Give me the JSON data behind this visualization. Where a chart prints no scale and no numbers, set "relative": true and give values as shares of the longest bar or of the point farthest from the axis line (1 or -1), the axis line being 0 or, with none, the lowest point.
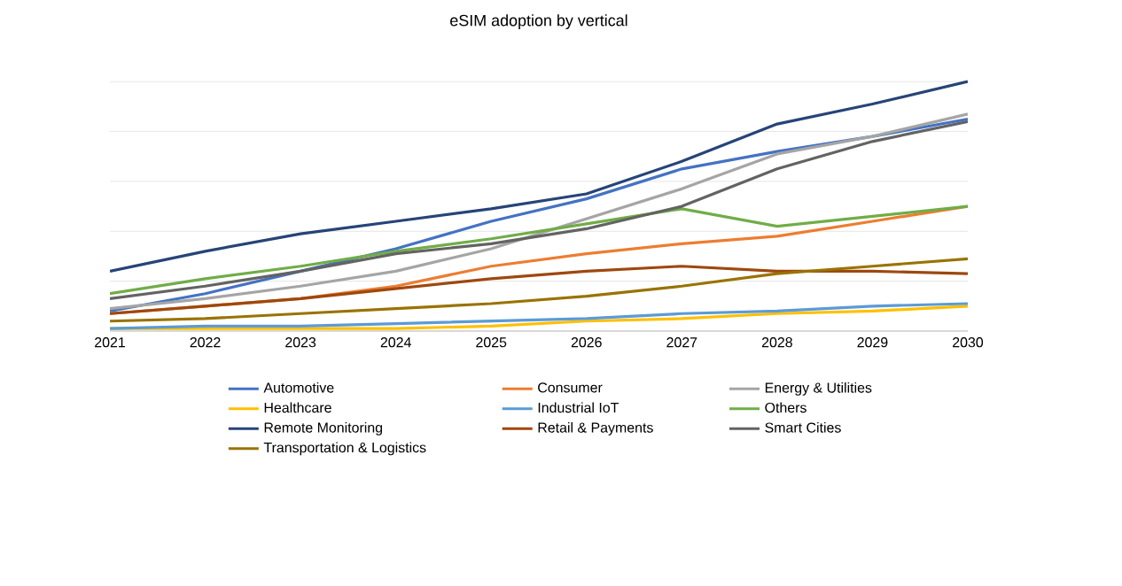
{
  "chart_data": {
    "type": "line",
    "title": "eSIM adoption by vertical",
    "relative": true,
    "grid": "y",
    "legend": "bottom",
    "categories": [
      "2021",
      "2022",
      "2023",
      "2024",
      "2025",
      "2026",
      "2027",
      "2028",
      "2029",
      "2030"
    ],
    "series": [
      {
        "name": "Automotive",
        "color": "#4472c4",
        "values": [
          0.08,
          0.15,
          0.24,
          0.33,
          0.44,
          0.53,
          0.65,
          0.72,
          0.78,
          0.85
        ]
      },
      {
        "name": "Consumer",
        "color": "#ed7d31",
        "values": [
          0.07,
          0.1,
          0.13,
          0.18,
          0.26,
          0.31,
          0.35,
          0.38,
          0.44,
          0.5
        ]
      },
      {
        "name": "Energy & Utilities",
        "color": "#a5a5a5",
        "values": [
          0.09,
          0.13,
          0.18,
          0.24,
          0.33,
          0.45,
          0.57,
          0.71,
          0.78,
          0.87
        ]
      },
      {
        "name": "Healthcare",
        "color": "#ffc000",
        "values": [
          0.01,
          0.01,
          0.01,
          0.01,
          0.02,
          0.04,
          0.05,
          0.07,
          0.08,
          0.1
        ]
      },
      {
        "name": "Industrial IoT",
        "color": "#5b9bd5",
        "values": [
          0.01,
          0.02,
          0.02,
          0.03,
          0.04,
          0.05,
          0.07,
          0.08,
          0.1,
          0.11
        ]
      },
      {
        "name": "Others",
        "color": "#70ad47",
        "values": [
          0.15,
          0.21,
          0.26,
          0.32,
          0.37,
          0.43,
          0.49,
          0.42,
          0.46,
          0.5
        ]
      },
      {
        "name": "Remote Monitoring",
        "color": "#264478",
        "values": [
          0.24,
          0.32,
          0.39,
          0.44,
          0.49,
          0.55,
          0.68,
          0.83,
          0.91,
          1
        ]
      },
      {
        "name": "Retail & Payments",
        "color": "#9e480e",
        "values": [
          0.07,
          0.1,
          0.13,
          0.17,
          0.21,
          0.24,
          0.26,
          0.24,
          0.24,
          0.23
        ]
      },
      {
        "name": "Smart Cities",
        "color": "#636363",
        "values": [
          0.13,
          0.18,
          0.24,
          0.31,
          0.35,
          0.41,
          0.5,
          0.65,
          0.76,
          0.84
        ]
      },
      {
        "name": "Transportation & Logistics",
        "color": "#997300",
        "values": [
          0.04,
          0.05,
          0.07,
          0.09,
          0.11,
          0.14,
          0.18,
          0.23,
          0.26,
          0.29
        ]
      }
    ]
  }
}
